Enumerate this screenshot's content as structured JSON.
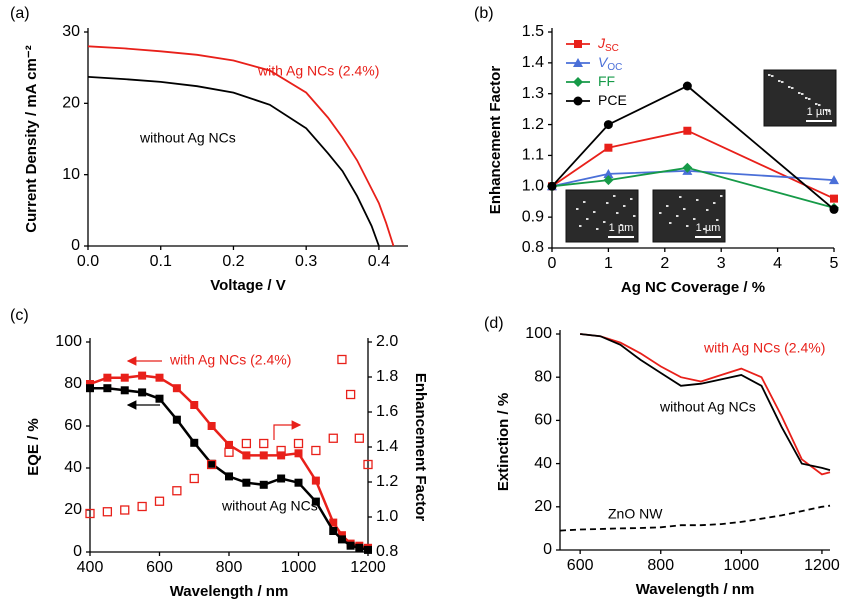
{
  "chart_data": [
    {
      "type": "line",
      "panel_label": "(a)",
      "xlabel": "Voltage / V",
      "ylabel": "Current Density / mA cm⁻²",
      "x": [
        0,
        0.05,
        0.1,
        0.15,
        0.2,
        0.25,
        0.3,
        0.33,
        0.35,
        0.37,
        0.39,
        0.4,
        0.41,
        0.42
      ],
      "series": [
        {
          "color": "#e8201a",
          "values": [
            28,
            27.7,
            27.3,
            26.8,
            26,
            24.6,
            21.5,
            18,
            15.2,
            12,
            8,
            6,
            3.2,
            0
          ]
        },
        {
          "color": "#000000",
          "values": [
            23.7,
            23.4,
            23,
            22.4,
            21.5,
            19.8,
            16.5,
            13,
            10.5,
            7,
            2.8,
            0,
            null,
            null
          ]
        }
      ],
      "annotations": [
        {
          "text": "with Ag NCs (2.4%)",
          "color": "#e8201a"
        },
        {
          "text": "without Ag NCs",
          "color": "#000000"
        }
      ],
      "xlim": [
        0,
        0.44
      ],
      "xticks": [
        {
          "value": 0,
          "label": "0.0"
        },
        0.1,
        0.2,
        0.3,
        0.4
      ],
      "ylim": [
        0,
        30
      ],
      "yticks": [
        0,
        10,
        20,
        30
      ]
    },
    {
      "type": "line",
      "panel_label": "(b)",
      "xlabel": "Ag NC Coverage / %",
      "ylabel": "Enhancement Factor",
      "x": [
        0,
        1,
        2.4,
        5
      ],
      "series": [
        {
          "name": "J",
          "sub": "SC",
          "color": "#e8201a",
          "marker": "square",
          "values": [
            1.0,
            1.125,
            1.18,
            0.96
          ]
        },
        {
          "name": "V",
          "sub": "OC",
          "color": "#4a6fd8",
          "marker": "triangle",
          "values": [
            1.0,
            1.04,
            1.05,
            1.02
          ]
        },
        {
          "name": "FF",
          "color": "#169a48",
          "marker": "diamond",
          "values": [
            1.0,
            1.02,
            1.06,
            0.93
          ]
        },
        {
          "name": "PCE",
          "color": "#000000",
          "marker": "circle",
          "values": [
            1.0,
            1.2,
            1.325,
            0.925
          ]
        }
      ],
      "legend": "upper left",
      "insets": [
        "1 µm",
        "1 µm",
        "1 µm"
      ],
      "xlim": [
        0,
        5
      ],
      "xticks": [
        0,
        1,
        2,
        3,
        4,
        5
      ],
      "ylim": [
        0.8,
        1.5
      ],
      "yticks": [
        0.8,
        0.9,
        {
          "value": 1,
          "label": "1.0"
        },
        1.1,
        1.2,
        1.3,
        1.4,
        1.5
      ]
    },
    {
      "type": "line",
      "panel_label": "(c)",
      "xlabel": "Wavelength / nm",
      "ylabel": "EQE / %",
      "y2label": "Enhancement Factor",
      "x": [
        400,
        450,
        500,
        550,
        600,
        650,
        700,
        750,
        800,
        850,
        900,
        950,
        1000,
        1050,
        1100,
        1125,
        1150,
        1175,
        1200
      ],
      "series": [
        {
          "color": "#e8201a",
          "marker": "square",
          "values": [
            80,
            83,
            83,
            84,
            83,
            78,
            70,
            60,
            51,
            46,
            46,
            46,
            47,
            34,
            14,
            8,
            4,
            3,
            2
          ]
        },
        {
          "color": "#000000",
          "marker": "square",
          "values": [
            78,
            78,
            77,
            76,
            73,
            63,
            52,
            42,
            36,
            33,
            32,
            35,
            33,
            24,
            10,
            6,
            3,
            2,
            1
          ]
        },
        {
          "color": "#e8201a",
          "marker": "open-square",
          "line": false,
          "axis": "y2",
          "values": [
            1.02,
            1.03,
            1.04,
            1.06,
            1.09,
            1.15,
            1.22,
            1.3,
            1.37,
            1.42,
            1.42,
            1.38,
            1.42,
            1.38,
            1.45,
            1.9,
            1.7,
            1.45,
            1.3
          ]
        }
      ],
      "annotations": [
        {
          "text": "with Ag NCs (2.4%)",
          "color": "#e8201a"
        },
        {
          "text": "without Ag NCs",
          "color": "#000000"
        }
      ],
      "xlim": [
        400,
        1200
      ],
      "xticks": [
        400,
        600,
        800,
        1000,
        1200
      ],
      "ylim": [
        0,
        100
      ],
      "yticks": [
        0,
        20,
        40,
        60,
        80,
        100
      ],
      "y2lim": [
        0.8,
        2.0
      ],
      "y2ticks": [
        0.8,
        {
          "value": 1,
          "label": "1.0"
        },
        1.2,
        1.4,
        1.6,
        1.8,
        {
          "value": 2,
          "label": "2.0"
        }
      ]
    },
    {
      "type": "line",
      "panel_label": "(d)",
      "xlabel": "Wavelength / nm",
      "ylabel": "Extinction / %",
      "x": [
        550,
        600,
        650,
        700,
        750,
        800,
        850,
        900,
        950,
        1000,
        1050,
        1100,
        1150,
        1200,
        1220
      ],
      "series": [
        {
          "color": "#e8201a",
          "values": [
            null,
            100,
            99,
            96,
            91,
            85,
            80,
            78,
            81,
            84,
            80,
            62,
            42,
            35,
            36
          ]
        },
        {
          "color": "#000000",
          "values": [
            null,
            100,
            99,
            95,
            88,
            82,
            76,
            77,
            79,
            81,
            76,
            57,
            40,
            38,
            37
          ]
        },
        {
          "color": "#000000",
          "dash": true,
          "values": [
            9,
            9.5,
            9.7,
            10,
            10.2,
            10.5,
            11.5,
            11.5,
            12,
            13,
            14.5,
            16,
            18,
            20,
            20.5
          ]
        }
      ],
      "annotations": [
        {
          "text": "with Ag NCs (2.4%)",
          "color": "#e8201a"
        },
        {
          "text": "without Ag NCs",
          "color": "#000000"
        },
        {
          "text": "ZnO NW",
          "color": "#000000"
        }
      ],
      "xlim": [
        550,
        1220
      ],
      "xticks": [
        600,
        800,
        1000,
        1200
      ],
      "ylim": [
        0,
        100
      ],
      "yticks": [
        0,
        20,
        40,
        60,
        80,
        100
      ]
    }
  ]
}
